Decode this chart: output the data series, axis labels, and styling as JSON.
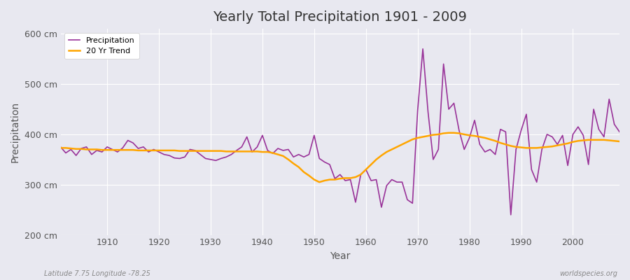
{
  "title": "Yearly Total Precipitation 1901 - 2009",
  "xlabel": "Year",
  "ylabel": "Precipitation",
  "subtitle_left": "Latitude 7.75 Longitude -78.25",
  "subtitle_right": "worldspecies.org",
  "ylim": [
    200,
    610
  ],
  "yticks": [
    200,
    300,
    400,
    500,
    600
  ],
  "ytick_labels": [
    "200 cm",
    "300 cm",
    "400 cm",
    "500 cm",
    "600 cm"
  ],
  "xlim": [
    1901,
    2009
  ],
  "xticks": [
    1910,
    1920,
    1930,
    1940,
    1950,
    1960,
    1970,
    1980,
    1990,
    2000
  ],
  "precip_color": "#993399",
  "trend_color": "#FFA500",
  "bg_color": "#E8E8F0",
  "plot_bg_color": "#E8E8F0",
  "grid_color": "#FFFFFF",
  "years": [
    1901,
    1902,
    1903,
    1904,
    1905,
    1906,
    1907,
    1908,
    1909,
    1910,
    1911,
    1912,
    1913,
    1914,
    1915,
    1916,
    1917,
    1918,
    1919,
    1920,
    1921,
    1922,
    1923,
    1924,
    1925,
    1926,
    1927,
    1928,
    1929,
    1930,
    1931,
    1932,
    1933,
    1934,
    1935,
    1936,
    1937,
    1938,
    1939,
    1940,
    1941,
    1942,
    1943,
    1944,
    1945,
    1946,
    1947,
    1948,
    1949,
    1950,
    1951,
    1952,
    1953,
    1954,
    1955,
    1956,
    1957,
    1958,
    1959,
    1960,
    1961,
    1962,
    1963,
    1964,
    1965,
    1966,
    1967,
    1968,
    1969,
    1970,
    1971,
    1972,
    1973,
    1974,
    1975,
    1976,
    1977,
    1978,
    1979,
    1980,
    1981,
    1982,
    1983,
    1984,
    1985,
    1986,
    1987,
    1988,
    1989,
    1990,
    1991,
    1992,
    1993,
    1994,
    1995,
    1996,
    1997,
    1998,
    1999,
    2000,
    2001,
    2002,
    2003,
    2004,
    2005,
    2006,
    2007,
    2008,
    2009
  ],
  "precipitation": [
    375,
    363,
    370,
    358,
    372,
    375,
    360,
    368,
    365,
    375,
    370,
    365,
    373,
    388,
    383,
    372,
    375,
    365,
    370,
    365,
    360,
    358,
    353,
    352,
    355,
    370,
    368,
    360,
    352,
    350,
    348,
    352,
    355,
    360,
    368,
    375,
    395,
    365,
    375,
    398,
    368,
    362,
    372,
    368,
    370,
    355,
    360,
    355,
    360,
    398,
    352,
    345,
    340,
    312,
    320,
    308,
    310,
    265,
    320,
    330,
    308,
    310,
    255,
    298,
    310,
    305,
    305,
    270,
    263,
    448,
    570,
    445,
    350,
    370,
    540,
    450,
    462,
    408,
    370,
    393,
    428,
    380,
    365,
    370,
    360,
    410,
    405,
    240,
    370,
    408,
    440,
    330,
    305,
    370,
    400,
    395,
    380,
    398,
    338,
    400,
    415,
    398,
    340,
    450,
    410,
    395,
    470,
    420,
    405
  ],
  "trend": [
    373,
    373,
    372,
    371,
    371,
    370,
    370,
    370,
    369,
    369,
    369,
    369,
    369,
    369,
    369,
    368,
    368,
    368,
    368,
    368,
    368,
    368,
    368,
    367,
    367,
    367,
    367,
    367,
    367,
    367,
    367,
    367,
    366,
    366,
    366,
    366,
    366,
    366,
    366,
    365,
    365,
    363,
    360,
    357,
    350,
    342,
    335,
    325,
    318,
    310,
    305,
    308,
    310,
    310,
    312,
    313,
    313,
    315,
    320,
    330,
    340,
    350,
    358,
    365,
    370,
    375,
    380,
    385,
    390,
    393,
    395,
    397,
    399,
    400,
    402,
    403,
    403,
    402,
    400,
    398,
    397,
    395,
    393,
    390,
    387,
    383,
    380,
    377,
    375,
    374,
    373,
    373,
    373,
    374,
    375,
    376,
    378,
    380,
    382,
    385,
    387,
    388,
    389,
    389,
    389,
    389,
    388,
    387,
    386
  ]
}
